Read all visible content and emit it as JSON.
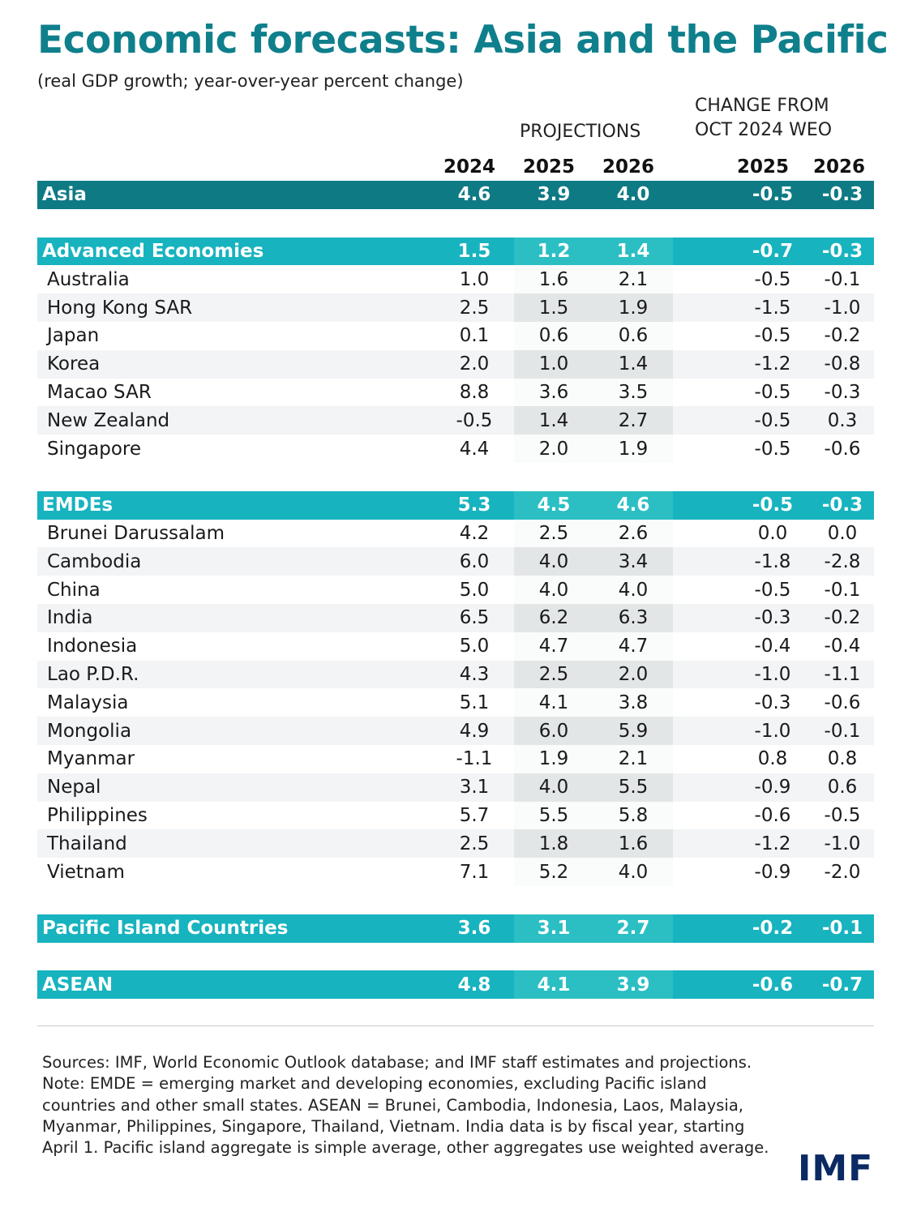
{
  "title": "Economic forecasts: Asia and the Pacific",
  "subtitle": "(real GDP growth; year-over-year percent change)",
  "header": {
    "projections": "PROJECTIONS",
    "change_line1": "CHANGE FROM",
    "change_line2": "OCT 2024 WEO",
    "years": [
      "2024",
      "2025",
      "2026",
      "2025",
      "2026"
    ]
  },
  "chart_data": {
    "type": "table",
    "columns": [
      "2024",
      "2025",
      "2026",
      "2025",
      "2026"
    ],
    "rows": [
      {
        "name": "Asia",
        "kind": "asia",
        "values": [
          "4.6",
          "3.9",
          "4.0",
          "-0.5",
          "-0.3"
        ]
      },
      {
        "kind": "gap"
      },
      {
        "name": "Advanced Economies",
        "kind": "agg",
        "values": [
          "1.5",
          "1.2",
          "1.4",
          "-0.7",
          "-0.3"
        ]
      },
      {
        "name": "Australia",
        "kind": "plain",
        "values": [
          "1.0",
          "1.6",
          "2.1",
          "-0.5",
          "-0.1"
        ]
      },
      {
        "name": "Hong Kong SAR",
        "kind": "zebra",
        "values": [
          "2.5",
          "1.5",
          "1.9",
          "-1.5",
          "-1.0"
        ]
      },
      {
        "name": "Japan",
        "kind": "plain",
        "values": [
          "0.1",
          "0.6",
          "0.6",
          "-0.5",
          "-0.2"
        ]
      },
      {
        "name": "Korea",
        "kind": "zebra",
        "values": [
          "2.0",
          "1.0",
          "1.4",
          "-1.2",
          "-0.8"
        ]
      },
      {
        "name": "Macao SAR",
        "kind": "plain",
        "values": [
          "8.8",
          "3.6",
          "3.5",
          "-0.5",
          "-0.3"
        ]
      },
      {
        "name": "New Zealand",
        "kind": "zebra",
        "values": [
          "-0.5",
          "1.4",
          "2.7",
          "-0.5",
          "0.3"
        ]
      },
      {
        "name": "Singapore",
        "kind": "plain",
        "values": [
          "4.4",
          "2.0",
          "1.9",
          "-0.5",
          "-0.6"
        ]
      },
      {
        "kind": "gap"
      },
      {
        "name": "EMDEs",
        "kind": "agg",
        "values": [
          "5.3",
          "4.5",
          "4.6",
          "-0.5",
          "-0.3"
        ]
      },
      {
        "name": "Brunei Darussalam",
        "kind": "plain",
        "values": [
          "4.2",
          "2.5",
          "2.6",
          "0.0",
          "0.0"
        ]
      },
      {
        "name": "Cambodia",
        "kind": "zebra",
        "values": [
          "6.0",
          "4.0",
          "3.4",
          "-1.8",
          "-2.8"
        ]
      },
      {
        "name": "China",
        "kind": "plain",
        "values": [
          "5.0",
          "4.0",
          "4.0",
          "-0.5",
          "-0.1"
        ]
      },
      {
        "name": "India",
        "kind": "zebra",
        "values": [
          "6.5",
          "6.2",
          "6.3",
          "-0.3",
          "-0.2"
        ]
      },
      {
        "name": "Indonesia",
        "kind": "plain",
        "values": [
          "5.0",
          "4.7",
          "4.7",
          "-0.4",
          "-0.4"
        ]
      },
      {
        "name": "Lao P.D.R.",
        "kind": "zebra",
        "values": [
          "4.3",
          "2.5",
          "2.0",
          "-1.0",
          "-1.1"
        ]
      },
      {
        "name": "Malaysia",
        "kind": "plain",
        "values": [
          "5.1",
          "4.1",
          "3.8",
          "-0.3",
          "-0.6"
        ]
      },
      {
        "name": "Mongolia",
        "kind": "zebra",
        "values": [
          "4.9",
          "6.0",
          "5.9",
          "-1.0",
          "-0.1"
        ]
      },
      {
        "name": "Myanmar",
        "kind": "plain",
        "values": [
          "-1.1",
          "1.9",
          "2.1",
          "0.8",
          "0.8"
        ]
      },
      {
        "name": "Nepal",
        "kind": "zebra",
        "values": [
          "3.1",
          "4.0",
          "5.5",
          "-0.9",
          "0.6"
        ]
      },
      {
        "name": "Philippines",
        "kind": "plain",
        "values": [
          "5.7",
          "5.5",
          "5.8",
          "-0.6",
          "-0.5"
        ]
      },
      {
        "name": "Thailand",
        "kind": "zebra",
        "values": [
          "2.5",
          "1.8",
          "1.6",
          "-1.2",
          "-1.0"
        ]
      },
      {
        "name": "Vietnam",
        "kind": "plain",
        "values": [
          "7.1",
          "5.2",
          "4.0",
          "-0.9",
          "-2.0"
        ]
      },
      {
        "kind": "gap"
      },
      {
        "name": "Pacific Island Countries",
        "kind": "agg",
        "values": [
          "3.6",
          "3.1",
          "2.7",
          "-0.2",
          "-0.1"
        ]
      },
      {
        "kind": "gap"
      },
      {
        "name": "ASEAN",
        "kind": "agg",
        "values": [
          "4.8",
          "4.1",
          "3.9",
          "-0.6",
          "-0.7"
        ]
      }
    ]
  },
  "notes": "Sources: IMF, World Economic Outlook database; and IMF staff estimates and projections. Note: EMDE = emerging market and developing economies, excluding Pacific island countries and other small states. ASEAN = Brunei, Cambodia, Indonesia, Laos, Malaysia, Myanmar, Philippines, Singapore, Thailand, Vietnam. India data is by fiscal year, starting April 1. Pacific island aggregate is simple average, other aggregates use weighted average.",
  "logo_text": "IMF",
  "colors": {
    "title": "#0f7f8c",
    "asia_row": "#0e7a84",
    "aggregate_row": "#17b3bf",
    "logo": "#0b2a63"
  }
}
